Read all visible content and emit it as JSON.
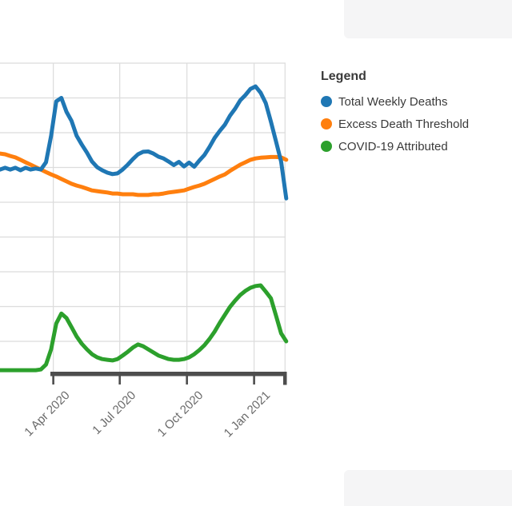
{
  "legend": {
    "title": "Legend",
    "items": [
      {
        "label": "Total Weekly Deaths",
        "color": "#1f77b4"
      },
      {
        "label": "Excess Death Threshold",
        "color": "#ff7f0e"
      },
      {
        "label": "COVID-19 Attributed",
        "color": "#2ca02c"
      }
    ]
  },
  "chart_data": {
    "type": "line",
    "title": "",
    "grid": true,
    "legend_position": "right",
    "x_axis": {
      "ticks": [
        {
          "date": "2020-04-01",
          "label": "1 Apr 2020"
        },
        {
          "date": "2020-07-01",
          "label": "1 Jul 2020"
        },
        {
          "date": "2020-10-01",
          "label": "1 Oct 2020"
        },
        {
          "date": "2021-01-01",
          "label": "1 Jan 2021"
        }
      ]
    },
    "y_axis": {
      "visible": false,
      "unit": "gridline divisions (y-axis labels are cropped out of the frame; 1.0 = one horizontal gridline step above the baseline)",
      "gridline_values": [
        1,
        2,
        3,
        4,
        5,
        6,
        7,
        8,
        9
      ]
    },
    "weeks": [
      "2020-01-19",
      "2020-01-26",
      "2020-02-02",
      "2020-02-09",
      "2020-02-16",
      "2020-02-23",
      "2020-03-01",
      "2020-03-08",
      "2020-03-15",
      "2020-03-22",
      "2020-03-29",
      "2020-04-05",
      "2020-04-12",
      "2020-04-19",
      "2020-04-26",
      "2020-05-03",
      "2020-05-10",
      "2020-05-17",
      "2020-05-24",
      "2020-05-31",
      "2020-06-07",
      "2020-06-14",
      "2020-06-21",
      "2020-06-28",
      "2020-07-05",
      "2020-07-12",
      "2020-07-19",
      "2020-07-26",
      "2020-08-02",
      "2020-08-09",
      "2020-08-16",
      "2020-08-23",
      "2020-08-30",
      "2020-09-06",
      "2020-09-13",
      "2020-09-20",
      "2020-09-27",
      "2020-10-04",
      "2020-10-11",
      "2020-10-18",
      "2020-10-25",
      "2020-11-01",
      "2020-11-08",
      "2020-11-15",
      "2020-11-22",
      "2020-11-29",
      "2020-12-06",
      "2020-12-13",
      "2020-12-20",
      "2020-12-27",
      "2021-01-03",
      "2021-01-10",
      "2021-01-17",
      "2021-01-24",
      "2021-01-31",
      "2021-02-07",
      "2021-02-14"
    ],
    "series": [
      {
        "name": "Total Weekly Deaths",
        "color": "#1f77b4",
        "values": [
          5.94,
          5.99,
          5.94,
          5.99,
          5.92,
          5.99,
          5.94,
          5.97,
          5.94,
          6.15,
          6.91,
          7.9,
          8.0,
          7.6,
          7.34,
          6.91,
          6.66,
          6.43,
          6.17,
          6.01,
          5.92,
          5.85,
          5.81,
          5.83,
          5.94,
          6.08,
          6.24,
          6.38,
          6.45,
          6.46,
          6.4,
          6.31,
          6.26,
          6.17,
          6.07,
          6.16,
          6.03,
          6.14,
          6.02,
          6.2,
          6.36,
          6.59,
          6.85,
          7.05,
          7.23,
          7.49,
          7.69,
          7.93,
          8.08,
          8.26,
          8.33,
          8.15,
          7.85,
          7.32,
          6.75,
          6.17,
          5.11
        ]
      },
      {
        "name": "Excess Death Threshold",
        "color": "#ff7f0e",
        "values": [
          6.4,
          6.38,
          6.33,
          6.29,
          6.22,
          6.15,
          6.08,
          6.01,
          5.94,
          5.87,
          5.8,
          5.74,
          5.67,
          5.6,
          5.53,
          5.48,
          5.44,
          5.39,
          5.34,
          5.32,
          5.3,
          5.28,
          5.25,
          5.25,
          5.23,
          5.23,
          5.23,
          5.21,
          5.21,
          5.21,
          5.23,
          5.23,
          5.25,
          5.28,
          5.3,
          5.32,
          5.34,
          5.39,
          5.44,
          5.48,
          5.53,
          5.6,
          5.67,
          5.74,
          5.8,
          5.9,
          5.99,
          6.08,
          6.15,
          6.22,
          6.26,
          6.28,
          6.29,
          6.3,
          6.3,
          6.29,
          6.22
        ]
      },
      {
        "name": "COVID-19 Attributed",
        "color": "#2ca02c",
        "values": [
          0.17,
          0.17,
          0.17,
          0.17,
          0.17,
          0.17,
          0.17,
          0.17,
          0.19,
          0.33,
          0.77,
          1.51,
          1.8,
          1.67,
          1.41,
          1.14,
          0.93,
          0.77,
          0.63,
          0.54,
          0.49,
          0.47,
          0.45,
          0.49,
          0.59,
          0.7,
          0.82,
          0.91,
          0.86,
          0.77,
          0.68,
          0.59,
          0.54,
          0.49,
          0.47,
          0.47,
          0.49,
          0.54,
          0.63,
          0.75,
          0.89,
          1.07,
          1.28,
          1.53,
          1.76,
          1.99,
          2.17,
          2.33,
          2.45,
          2.54,
          2.59,
          2.61,
          2.43,
          2.24,
          1.74,
          1.23,
          1.0
        ]
      }
    ]
  }
}
